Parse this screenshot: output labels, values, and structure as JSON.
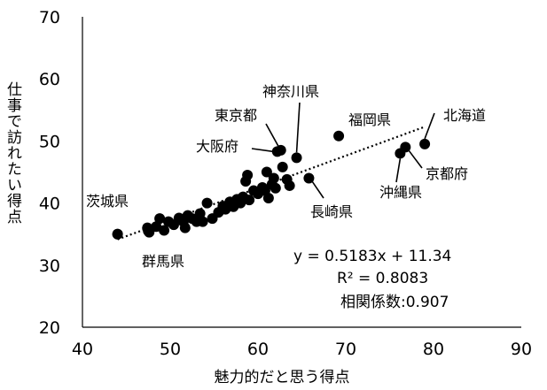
{
  "chart_data": {
    "type": "scatter",
    "xlabel": "魅力的だと思う得点",
    "ylabel": "仕事で訪れたい得点",
    "xlim": [
      40,
      90
    ],
    "ylim": [
      20,
      70
    ],
    "xticks": [
      "40",
      "50",
      "60",
      "70",
      "80",
      "90"
    ],
    "yticks": [
      "20",
      "30",
      "40",
      "50",
      "60",
      "70"
    ],
    "trendline": {
      "style": "dotted",
      "x_range": [
        44,
        79
      ],
      "slope": 0.5183,
      "intercept": 11.34
    },
    "equation": "y = 0.5183x + 11.34",
    "r2": "R² = 0.8083",
    "correlation": "相関係数:0.907",
    "labeled_points": [
      {
        "name": "北海道",
        "x": 79.0,
        "y": 49.5
      },
      {
        "name": "京都府",
        "x": 76.8,
        "y": 49.0
      },
      {
        "name": "沖縄県",
        "x": 76.2,
        "y": 48.0
      },
      {
        "name": "福岡県",
        "x": 69.2,
        "y": 50.8
      },
      {
        "name": "神奈川県",
        "x": 64.4,
        "y": 47.3
      },
      {
        "name": "東京都",
        "x": 62.6,
        "y": 48.5
      },
      {
        "name": "大阪府",
        "x": 62.2,
        "y": 48.3
      },
      {
        "name": "長崎県",
        "x": 65.8,
        "y": 44.0
      },
      {
        "name": "茨城県",
        "x": 44.0,
        "y": 35.0
      },
      {
        "name": "群馬県",
        "x": 47.5,
        "y": 35.5
      }
    ],
    "points": [
      {
        "x": 44.0,
        "y": 35.0
      },
      {
        "x": 47.4,
        "y": 36.0
      },
      {
        "x": 47.6,
        "y": 35.3
      },
      {
        "x": 48.4,
        "y": 36.2
      },
      {
        "x": 48.8,
        "y": 37.5
      },
      {
        "x": 49.3,
        "y": 35.6
      },
      {
        "x": 49.8,
        "y": 37.0
      },
      {
        "x": 50.4,
        "y": 36.5
      },
      {
        "x": 51.0,
        "y": 37.6
      },
      {
        "x": 51.5,
        "y": 37.0
      },
      {
        "x": 51.7,
        "y": 36.0
      },
      {
        "x": 52.0,
        "y": 38.0
      },
      {
        "x": 52.5,
        "y": 37.5
      },
      {
        "x": 53.0,
        "y": 37.0
      },
      {
        "x": 53.4,
        "y": 38.3
      },
      {
        "x": 53.7,
        "y": 37.0
      },
      {
        "x": 54.2,
        "y": 40.0
      },
      {
        "x": 54.8,
        "y": 37.5
      },
      {
        "x": 55.5,
        "y": 38.5
      },
      {
        "x": 56.0,
        "y": 39.5
      },
      {
        "x": 56.3,
        "y": 39.0
      },
      {
        "x": 56.8,
        "y": 40.2
      },
      {
        "x": 57.2,
        "y": 39.4
      },
      {
        "x": 57.6,
        "y": 40.6
      },
      {
        "x": 58.0,
        "y": 40.0
      },
      {
        "x": 58.3,
        "y": 41.0
      },
      {
        "x": 58.6,
        "y": 43.5
      },
      {
        "x": 59.0,
        "y": 40.5
      },
      {
        "x": 59.5,
        "y": 42.0
      },
      {
        "x": 60.0,
        "y": 41.5
      },
      {
        "x": 60.5,
        "y": 42.5
      },
      {
        "x": 61.0,
        "y": 45.0
      },
      {
        "x": 61.2,
        "y": 40.8
      },
      {
        "x": 61.6,
        "y": 43.0
      },
      {
        "x": 62.0,
        "y": 42.4
      },
      {
        "x": 62.8,
        "y": 45.8
      },
      {
        "x": 63.3,
        "y": 43.8
      },
      {
        "x": 63.6,
        "y": 42.8
      },
      {
        "x": 58.8,
        "y": 44.5
      },
      {
        "x": 60.8,
        "y": 42.0
      },
      {
        "x": 61.8,
        "y": 44.0
      }
    ]
  }
}
